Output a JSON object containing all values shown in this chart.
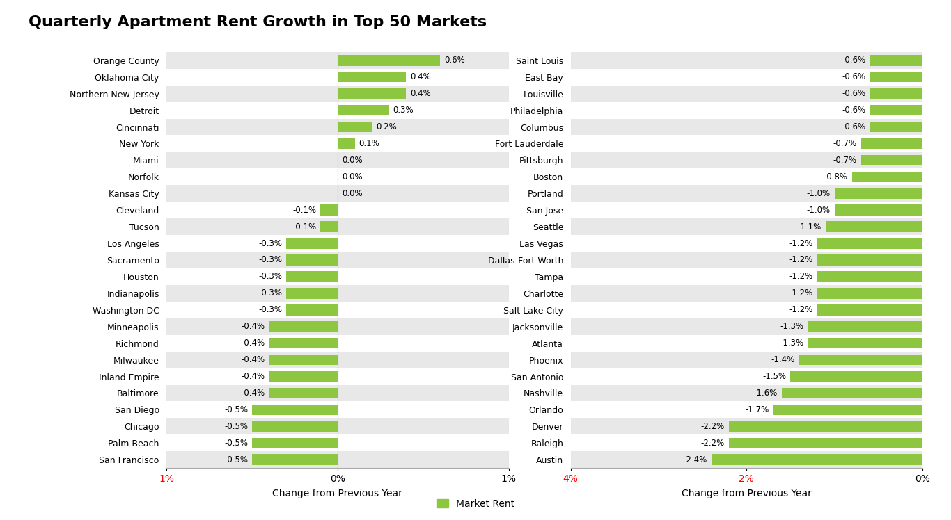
{
  "title": "Quarterly Apartment Rent Growth in Top 50 Markets",
  "bar_color": "#8DC63F",
  "alt_row_color": "#E8E8E8",
  "white_row_color": "#FFFFFF",
  "xlabel": "Change from Previous Year",
  "legend_label": "Market Rent",
  "left_panel": {
    "categories": [
      "Orange County",
      "Oklahoma City",
      "Northern New Jersey",
      "Detroit",
      "Cincinnati",
      "New York",
      "Miami",
      "Norfolk",
      "Kansas City",
      "Cleveland",
      "Tucson",
      "Los Angeles",
      "Sacramento",
      "Houston",
      "Indianapolis",
      "Washington DC",
      "Minneapolis",
      "Richmond",
      "Milwaukee",
      "Inland Empire",
      "Baltimore",
      "San Diego",
      "Chicago",
      "Palm Beach",
      "San Francisco"
    ],
    "values": [
      0.6,
      0.4,
      0.4,
      0.3,
      0.2,
      0.1,
      0.0,
      0.0,
      0.0,
      -0.1,
      -0.1,
      -0.3,
      -0.3,
      -0.3,
      -0.3,
      -0.3,
      -0.4,
      -0.4,
      -0.4,
      -0.4,
      -0.4,
      -0.5,
      -0.5,
      -0.5,
      -0.5
    ],
    "xlim": [
      -1.0,
      1.0
    ],
    "xticks": [
      -1.0,
      0.0,
      1.0
    ],
    "xticklabels": [
      "1%",
      "0%",
      "1%"
    ],
    "xticklabel_colors": [
      "#FF0000",
      "#000000",
      "#000000"
    ]
  },
  "right_panel": {
    "categories": [
      "Saint Louis",
      "East Bay",
      "Louisville",
      "Philadelphia",
      "Columbus",
      "Fort Lauderdale",
      "Pittsburgh",
      "Boston",
      "Portland",
      "San Jose",
      "Seattle",
      "Las Vegas",
      "Dallas-Fort Worth",
      "Tampa",
      "Charlotte",
      "Salt Lake City",
      "Jacksonville",
      "Atlanta",
      "Phoenix",
      "San Antonio",
      "Nashville",
      "Orlando",
      "Denver",
      "Raleigh",
      "Austin"
    ],
    "values": [
      -0.6,
      -0.6,
      -0.6,
      -0.6,
      -0.6,
      -0.7,
      -0.7,
      -0.8,
      -1.0,
      -1.0,
      -1.1,
      -1.2,
      -1.2,
      -1.2,
      -1.2,
      -1.2,
      -1.3,
      -1.3,
      -1.4,
      -1.5,
      -1.6,
      -1.7,
      -2.2,
      -2.2,
      -2.4
    ],
    "xlim": [
      -4.0,
      0.0
    ],
    "xticks": [
      -4.0,
      -2.0,
      0.0
    ],
    "xticklabels": [
      "4%",
      "2%",
      "0%"
    ],
    "xticklabel_colors": [
      "#FF0000",
      "#FF0000",
      "#000000"
    ]
  }
}
